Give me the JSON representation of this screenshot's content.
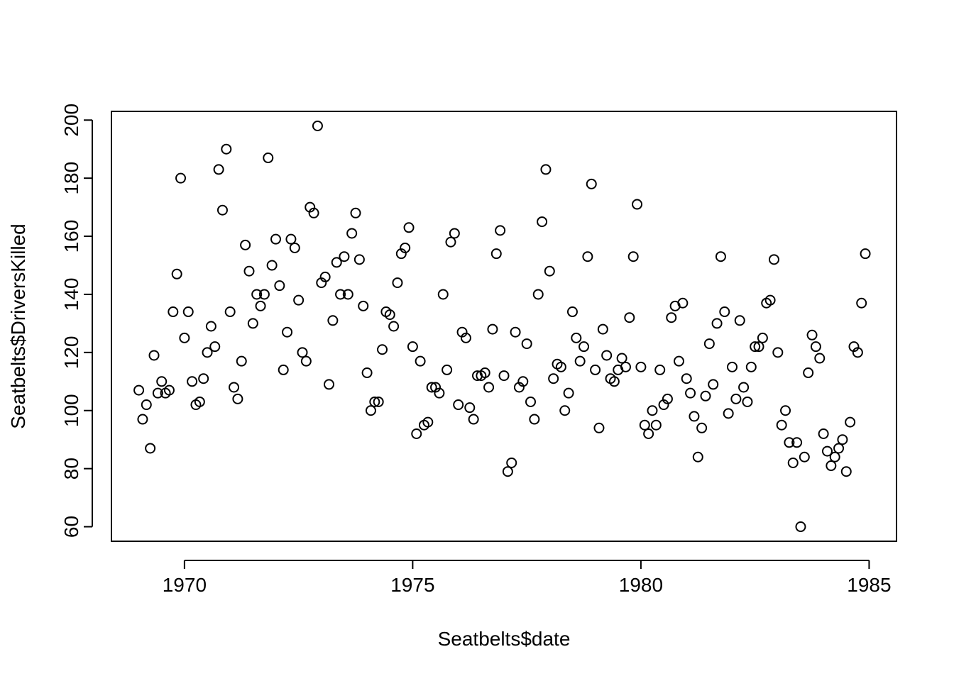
{
  "chart_data": {
    "type": "scatter",
    "xlabel": "Seatbelts$date",
    "ylabel": "Seatbelts$DriversKilled",
    "xlim": [
      1968.4,
      1985.6
    ],
    "ylim": [
      55,
      203
    ],
    "x_ticks": [
      1970,
      1975,
      1980,
      1985
    ],
    "x_tick_labels": [
      "1970",
      "1975",
      "1980",
      "1985"
    ],
    "y_ticks": [
      60,
      80,
      100,
      120,
      140,
      160,
      180,
      200
    ],
    "y_tick_labels": [
      "60",
      "80",
      "100",
      "120",
      "140",
      "160",
      "180",
      "200"
    ],
    "start_year": 1969,
    "points_per_year": 12,
    "y": [
      107,
      97,
      102,
      87,
      119,
      106,
      110,
      106,
      107,
      134,
      147,
      180,
      125,
      134,
      110,
      102,
      103,
      111,
      120,
      129,
      122,
      183,
      169,
      190,
      134,
      108,
      104,
      117,
      157,
      148,
      130,
      140,
      136,
      140,
      187,
      150,
      159,
      143,
      114,
      127,
      159,
      156,
      138,
      120,
      117,
      170,
      168,
      198,
      144,
      146,
      109,
      131,
      151,
      140,
      153,
      140,
      161,
      168,
      152,
      136,
      113,
      100,
      103,
      103,
      121,
      134,
      133,
      129,
      144,
      154,
      156,
      163,
      122,
      92,
      117,
      95,
      96,
      108,
      108,
      106,
      140,
      114,
      158,
      161,
      102,
      127,
      125,
      101,
      97,
      112,
      112,
      113,
      108,
      128,
      154,
      162,
      112,
      79,
      82,
      127,
      108,
      110,
      123,
      103,
      97,
      140,
      165,
      183,
      148,
      111,
      116,
      115,
      100,
      106,
      134,
      125,
      117,
      122,
      153,
      178,
      114,
      94,
      128,
      119,
      111,
      110,
      114,
      118,
      115,
      132,
      153,
      171,
      115,
      95,
      92,
      100,
      95,
      114,
      102,
      104,
      132,
      136,
      117,
      137,
      111,
      106,
      98,
      84,
      94,
      105,
      123,
      109,
      130,
      153,
      134,
      99,
      115,
      104,
      131,
      108,
      103,
      115,
      122,
      122,
      125,
      137,
      138,
      152,
      120,
      95,
      100,
      89,
      82,
      89,
      60,
      84,
      113,
      126,
      122,
      118,
      92,
      86,
      81,
      84,
      87,
      90,
      79,
      96,
      122,
      120,
      137,
      154
    ]
  }
}
